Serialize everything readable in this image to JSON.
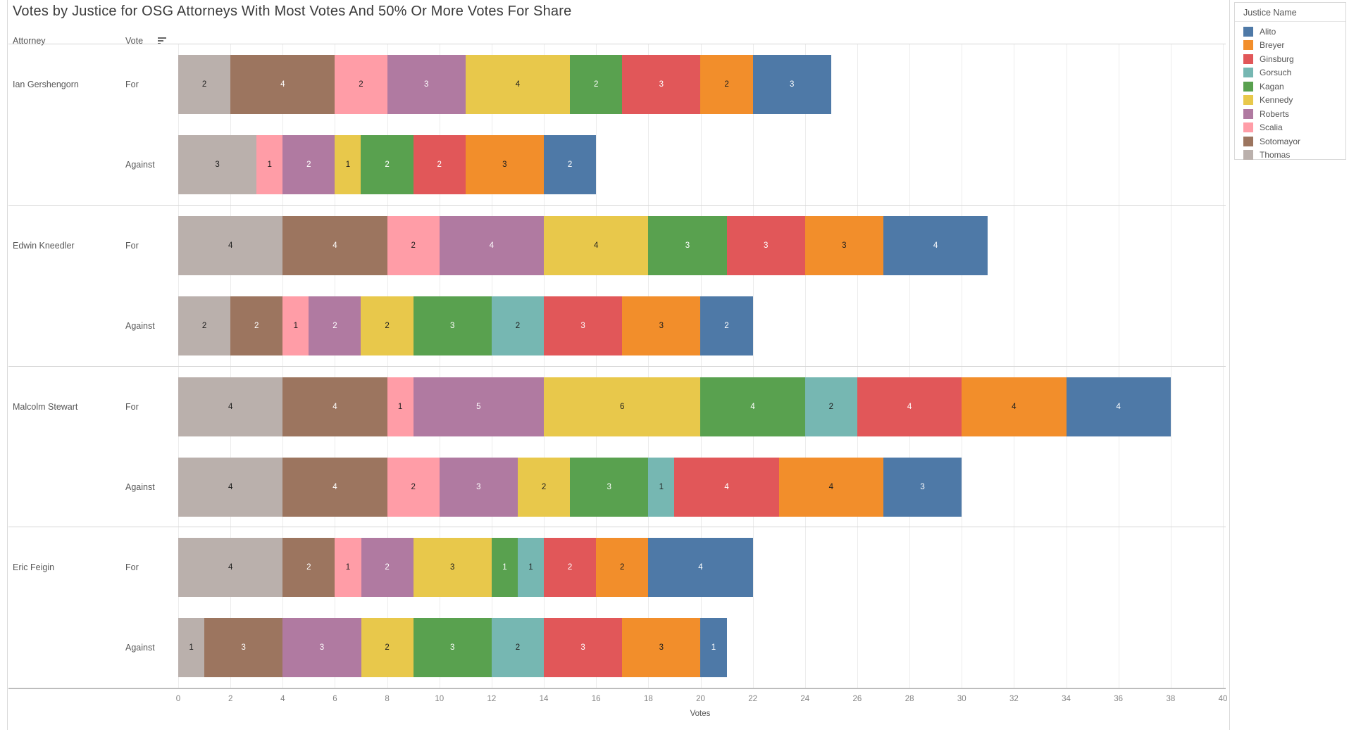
{
  "title": "Votes by Justice for OSG Attorneys With Most Votes And 50% Or More Votes For Share",
  "column_headers": {
    "attorney": "Attorney",
    "vote": "Vote"
  },
  "legend": {
    "title": "Justice Name",
    "entries": [
      {
        "name": "Alito",
        "color": "#4e79a7",
        "label_text_color": "#ffffff"
      },
      {
        "name": "Breyer",
        "color": "#f28e2b",
        "label_text_color": "#1e1e1e"
      },
      {
        "name": "Ginsburg",
        "color": "#e15759",
        "label_text_color": "#ffffff"
      },
      {
        "name": "Gorsuch",
        "color": "#76b7b2",
        "label_text_color": "#1e1e1e"
      },
      {
        "name": "Kagan",
        "color": "#59a14f",
        "label_text_color": "#ffffff"
      },
      {
        "name": "Kennedy",
        "color": "#e8c84b",
        "label_text_color": "#1e1e1e"
      },
      {
        "name": "Roberts",
        "color": "#b07aa1",
        "label_text_color": "#ffffff"
      },
      {
        "name": "Scalia",
        "color": "#ff9da7",
        "label_text_color": "#1e1e1e"
      },
      {
        "name": "Sotomayor",
        "color": "#9c755f",
        "label_text_color": "#ffffff"
      },
      {
        "name": "Thomas",
        "color": "#bab0ac",
        "label_text_color": "#1e1e1e"
      }
    ]
  },
  "axis": {
    "label": "Votes",
    "min": 0,
    "max": 40,
    "tick_step": 2,
    "ticks": [
      0,
      2,
      4,
      6,
      8,
      10,
      12,
      14,
      16,
      18,
      20,
      22,
      24,
      26,
      28,
      30,
      32,
      34,
      36,
      38,
      40
    ]
  },
  "chart_data": {
    "type": "bar",
    "orientation": "horizontal",
    "stacked": true,
    "title": "Votes by Justice for OSG Attorneys With Most Votes And 50% Or More Votes For Share",
    "xlabel": "Votes",
    "xlim": [
      0,
      40
    ],
    "grid": true,
    "legend_position": "top-right",
    "stack_order_left_to_right": [
      "Thomas",
      "Sotomayor",
      "Scalia",
      "Roberts",
      "Kennedy",
      "Kagan",
      "Gorsuch",
      "Ginsburg",
      "Breyer",
      "Alito"
    ],
    "groups": [
      {
        "attorney": "Ian Gershengorn",
        "rows": [
          {
            "vote": "For",
            "total": 25,
            "segments": [
              {
                "justice": "Thomas",
                "value": 2
              },
              {
                "justice": "Sotomayor",
                "value": 4
              },
              {
                "justice": "Scalia",
                "value": 2
              },
              {
                "justice": "Roberts",
                "value": 3
              },
              {
                "justice": "Kennedy",
                "value": 4
              },
              {
                "justice": "Kagan",
                "value": 2
              },
              {
                "justice": "Ginsburg",
                "value": 3
              },
              {
                "justice": "Breyer",
                "value": 2
              },
              {
                "justice": "Alito",
                "value": 3
              }
            ]
          },
          {
            "vote": "Against",
            "total": 16,
            "segments": [
              {
                "justice": "Thomas",
                "value": 3
              },
              {
                "justice": "Scalia",
                "value": 1
              },
              {
                "justice": "Roberts",
                "value": 2
              },
              {
                "justice": "Kennedy",
                "value": 1
              },
              {
                "justice": "Kagan",
                "value": 2
              },
              {
                "justice": "Ginsburg",
                "value": 2
              },
              {
                "justice": "Breyer",
                "value": 3
              },
              {
                "justice": "Alito",
                "value": 2
              }
            ]
          }
        ]
      },
      {
        "attorney": "Edwin Kneedler",
        "rows": [
          {
            "vote": "For",
            "total": 31,
            "segments": [
              {
                "justice": "Thomas",
                "value": 4
              },
              {
                "justice": "Sotomayor",
                "value": 4
              },
              {
                "justice": "Scalia",
                "value": 2
              },
              {
                "justice": "Roberts",
                "value": 4
              },
              {
                "justice": "Kennedy",
                "value": 4
              },
              {
                "justice": "Kagan",
                "value": 3
              },
              {
                "justice": "Ginsburg",
                "value": 3
              },
              {
                "justice": "Breyer",
                "value": 3
              },
              {
                "justice": "Alito",
                "value": 4
              }
            ]
          },
          {
            "vote": "Against",
            "total": 22,
            "segments": [
              {
                "justice": "Thomas",
                "value": 2
              },
              {
                "justice": "Sotomayor",
                "value": 2
              },
              {
                "justice": "Scalia",
                "value": 1
              },
              {
                "justice": "Roberts",
                "value": 2
              },
              {
                "justice": "Kennedy",
                "value": 2
              },
              {
                "justice": "Kagan",
                "value": 3
              },
              {
                "justice": "Gorsuch",
                "value": 2
              },
              {
                "justice": "Ginsburg",
                "value": 3
              },
              {
                "justice": "Breyer",
                "value": 3
              },
              {
                "justice": "Alito",
                "value": 2
              }
            ]
          }
        ]
      },
      {
        "attorney": "Malcolm Stewart",
        "rows": [
          {
            "vote": "For",
            "total": 38,
            "segments": [
              {
                "justice": "Thomas",
                "value": 4
              },
              {
                "justice": "Sotomayor",
                "value": 4
              },
              {
                "justice": "Scalia",
                "value": 1
              },
              {
                "justice": "Roberts",
                "value": 5
              },
              {
                "justice": "Kennedy",
                "value": 6
              },
              {
                "justice": "Kagan",
                "value": 4
              },
              {
                "justice": "Gorsuch",
                "value": 2
              },
              {
                "justice": "Ginsburg",
                "value": 4
              },
              {
                "justice": "Breyer",
                "value": 4
              },
              {
                "justice": "Alito",
                "value": 4
              }
            ]
          },
          {
            "vote": "Against",
            "total": 30,
            "segments": [
              {
                "justice": "Thomas",
                "value": 4
              },
              {
                "justice": "Sotomayor",
                "value": 4
              },
              {
                "justice": "Scalia",
                "value": 2
              },
              {
                "justice": "Roberts",
                "value": 3
              },
              {
                "justice": "Kennedy",
                "value": 2
              },
              {
                "justice": "Kagan",
                "value": 3
              },
              {
                "justice": "Gorsuch",
                "value": 1
              },
              {
                "justice": "Ginsburg",
                "value": 4
              },
              {
                "justice": "Breyer",
                "value": 4
              },
              {
                "justice": "Alito",
                "value": 3
              }
            ]
          }
        ]
      },
      {
        "attorney": "Eric Feigin",
        "rows": [
          {
            "vote": "For",
            "total": 22,
            "segments": [
              {
                "justice": "Thomas",
                "value": 4
              },
              {
                "justice": "Sotomayor",
                "value": 2
              },
              {
                "justice": "Scalia",
                "value": 1
              },
              {
                "justice": "Roberts",
                "value": 2
              },
              {
                "justice": "Kennedy",
                "value": 3
              },
              {
                "justice": "Kagan",
                "value": 1
              },
              {
                "justice": "Gorsuch",
                "value": 1
              },
              {
                "justice": "Ginsburg",
                "value": 2
              },
              {
                "justice": "Breyer",
                "value": 2
              },
              {
                "justice": "Alito",
                "value": 4
              }
            ]
          },
          {
            "vote": "Against",
            "total": 21,
            "segments": [
              {
                "justice": "Thomas",
                "value": 1
              },
              {
                "justice": "Sotomayor",
                "value": 3
              },
              {
                "justice": "Roberts",
                "value": 3
              },
              {
                "justice": "Kennedy",
                "value": 2
              },
              {
                "justice": "Kagan",
                "value": 3
              },
              {
                "justice": "Gorsuch",
                "value": 2
              },
              {
                "justice": "Ginsburg",
                "value": 3
              },
              {
                "justice": "Breyer",
                "value": 3
              },
              {
                "justice": "Alito",
                "value": 1
              }
            ]
          }
        ]
      }
    ]
  }
}
